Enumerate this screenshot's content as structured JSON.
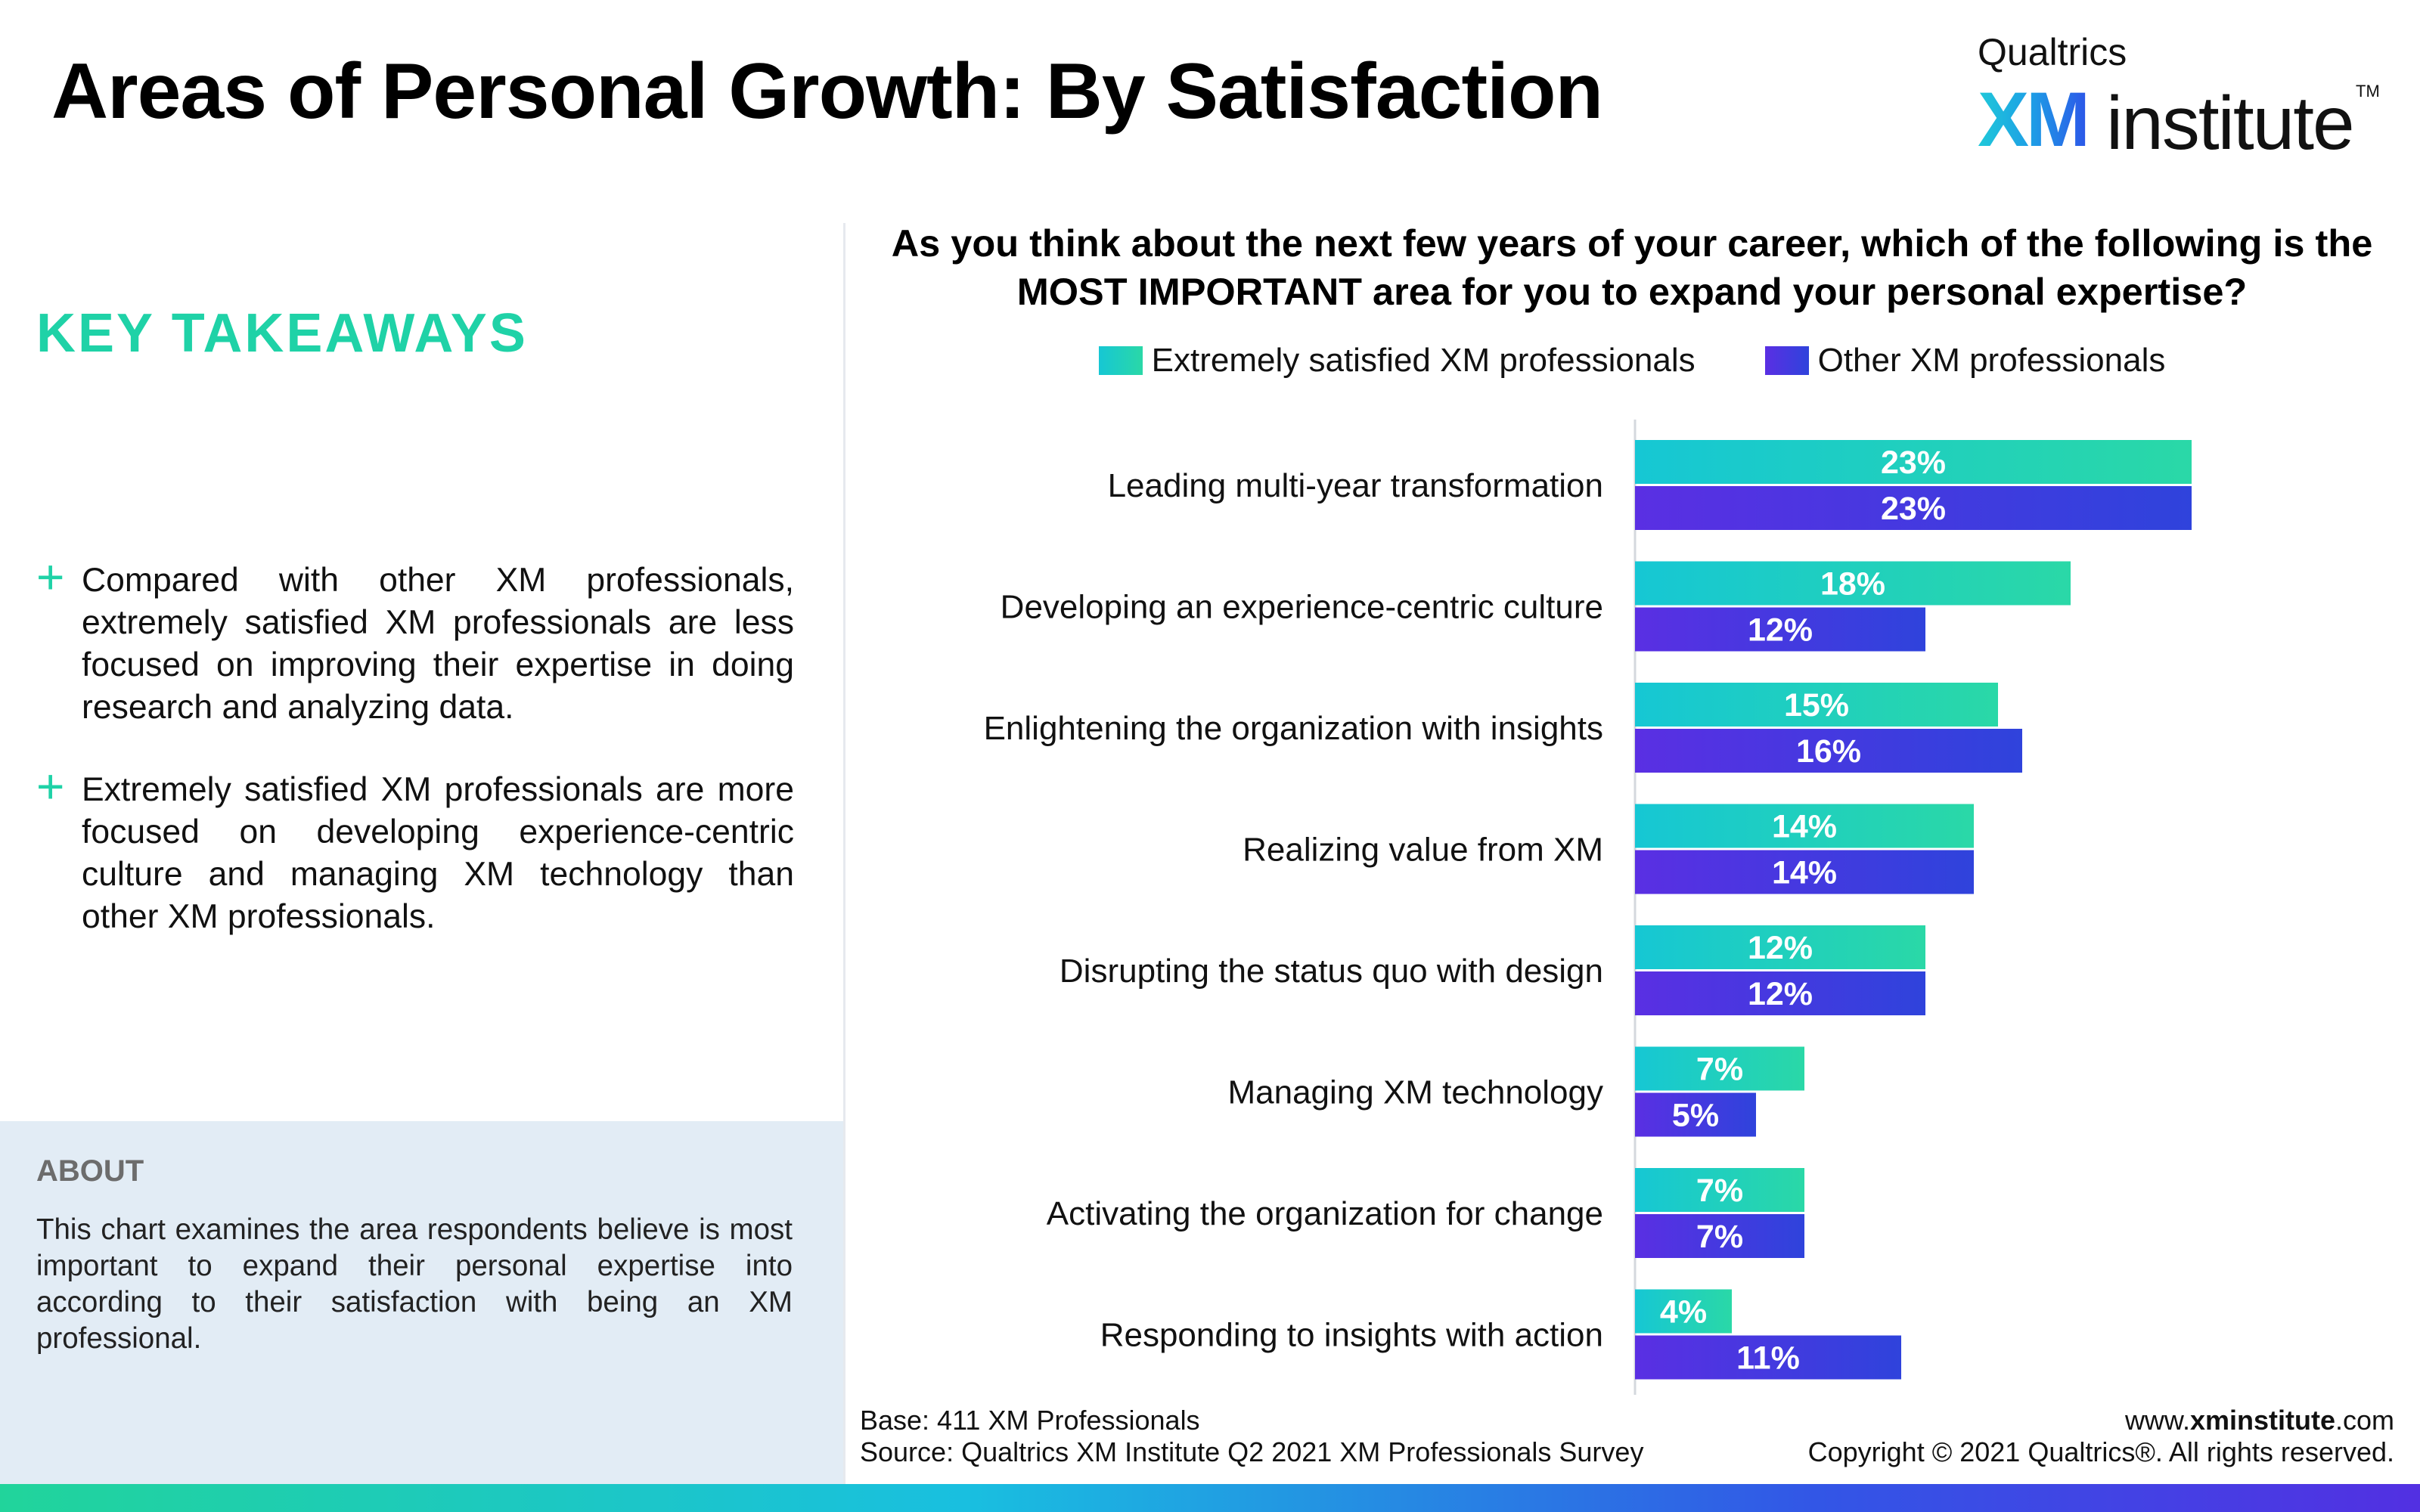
{
  "header": {
    "title": "Areas of Personal Growth: By Satisfaction",
    "logo_brand": "Qualtrics",
    "logo_xm": "XM",
    "logo_institute": "institute",
    "logo_tm": "TM"
  },
  "takeaways": {
    "heading": "KEY TAKEAWAYS",
    "bullet_symbol": "+",
    "items": [
      "Compared with other XM professionals, extremely satisfied XM professionals are less focused on improving their expertise in doing research and analyzing data.",
      "Extremely satisfied XM professionals are more focused on developing experience-centric culture and managing XM technology than other XM professionals."
    ]
  },
  "about": {
    "heading": "ABOUT",
    "text": "This chart examines the area respondents believe is most important to expand their personal expertise into according to their satisfaction with being an XM professional."
  },
  "footer": {
    "base": "Base: 411 XM Professionals",
    "source": "Source: Qualtrics XM Institute Q2 2021 XM Professionals Survey",
    "site_prefix": "www.",
    "site_bold": "xminstitute",
    "site_suffix": ".com",
    "copyright": "Copyright © 2021 Qualtrics®. All rights reserved."
  },
  "colors": {
    "accent_green": "#1fd2a7",
    "series1_start": "#16c7d4",
    "series1_end": "#2ad8a7",
    "series2_start": "#5a2fe3",
    "series2_end": "#2f43dc",
    "about_bg": "#e2ecf5"
  },
  "chart_data": {
    "type": "bar",
    "orientation": "horizontal",
    "title": "As you think about the next few years of your career, which of the following is the MOST IMPORTANT area for you to expand your personal expertise?",
    "legend_placement": "top",
    "grid": false,
    "value_suffix": "%",
    "xlim": [
      0,
      25
    ],
    "categories": [
      "Leading multi-year transformation",
      "Developing an experience-centric culture",
      "Enlightening the organization with insights",
      "Realizing value from XM",
      "Disrupting the status quo with design",
      "Managing XM technology",
      "Activating the organization for change",
      "Responding to insights with action"
    ],
    "series": [
      {
        "name": "Extremely satisfied XM professionals",
        "values": [
          23,
          18,
          15,
          14,
          12,
          7,
          7,
          4
        ]
      },
      {
        "name": "Other XM professionals",
        "values": [
          23,
          12,
          16,
          14,
          12,
          5,
          7,
          11
        ]
      }
    ]
  }
}
